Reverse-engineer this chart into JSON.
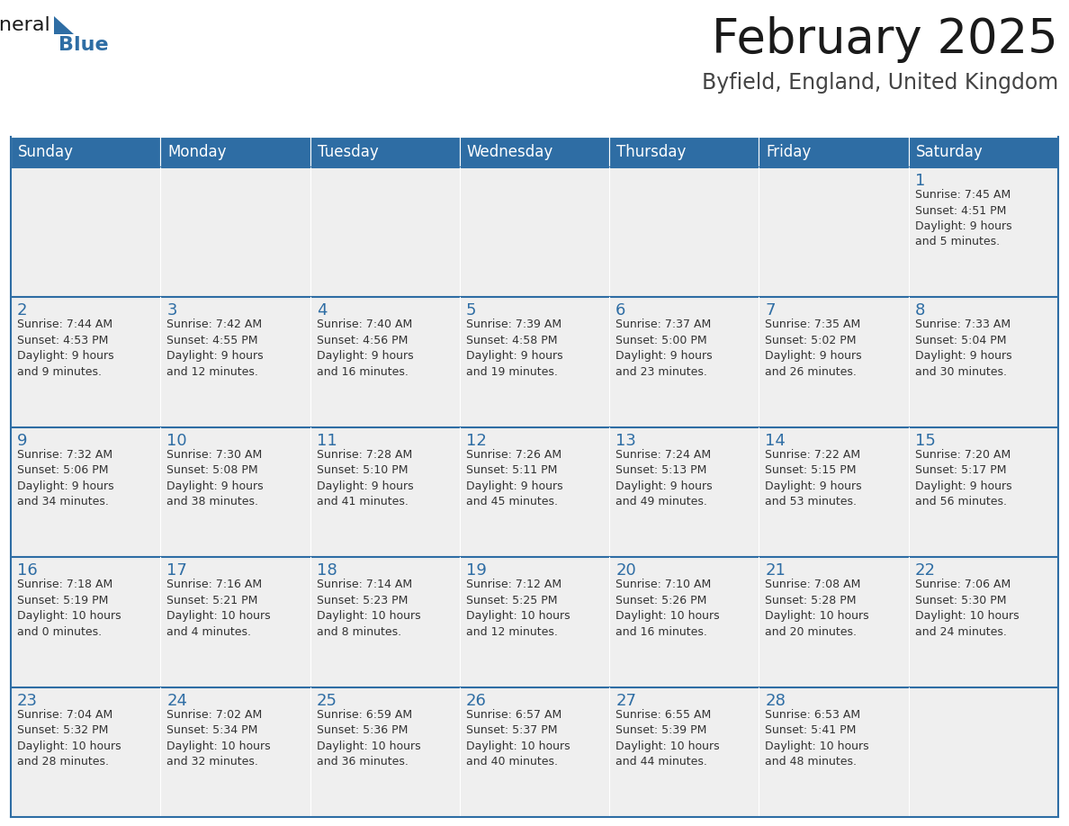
{
  "title": "February 2025",
  "subtitle": "Byfield, England, United Kingdom",
  "days_of_week": [
    "Sunday",
    "Monday",
    "Tuesday",
    "Wednesday",
    "Thursday",
    "Friday",
    "Saturday"
  ],
  "header_bg": "#2E6DA4",
  "header_text": "#FFFFFF",
  "cell_bg": "#EFEFEF",
  "cell_bg_white": "#FFFFFF",
  "day_num_color": "#2E6DA4",
  "text_color": "#333333",
  "border_color": "#2E6DA4",
  "calendar_data": [
    [
      {
        "day": null,
        "info": null
      },
      {
        "day": null,
        "info": null
      },
      {
        "day": null,
        "info": null
      },
      {
        "day": null,
        "info": null
      },
      {
        "day": null,
        "info": null
      },
      {
        "day": null,
        "info": null
      },
      {
        "day": 1,
        "info": "Sunrise: 7:45 AM\nSunset: 4:51 PM\nDaylight: 9 hours\nand 5 minutes."
      }
    ],
    [
      {
        "day": 2,
        "info": "Sunrise: 7:44 AM\nSunset: 4:53 PM\nDaylight: 9 hours\nand 9 minutes."
      },
      {
        "day": 3,
        "info": "Sunrise: 7:42 AM\nSunset: 4:55 PM\nDaylight: 9 hours\nand 12 minutes."
      },
      {
        "day": 4,
        "info": "Sunrise: 7:40 AM\nSunset: 4:56 PM\nDaylight: 9 hours\nand 16 minutes."
      },
      {
        "day": 5,
        "info": "Sunrise: 7:39 AM\nSunset: 4:58 PM\nDaylight: 9 hours\nand 19 minutes."
      },
      {
        "day": 6,
        "info": "Sunrise: 7:37 AM\nSunset: 5:00 PM\nDaylight: 9 hours\nand 23 minutes."
      },
      {
        "day": 7,
        "info": "Sunrise: 7:35 AM\nSunset: 5:02 PM\nDaylight: 9 hours\nand 26 minutes."
      },
      {
        "day": 8,
        "info": "Sunrise: 7:33 AM\nSunset: 5:04 PM\nDaylight: 9 hours\nand 30 minutes."
      }
    ],
    [
      {
        "day": 9,
        "info": "Sunrise: 7:32 AM\nSunset: 5:06 PM\nDaylight: 9 hours\nand 34 minutes."
      },
      {
        "day": 10,
        "info": "Sunrise: 7:30 AM\nSunset: 5:08 PM\nDaylight: 9 hours\nand 38 minutes."
      },
      {
        "day": 11,
        "info": "Sunrise: 7:28 AM\nSunset: 5:10 PM\nDaylight: 9 hours\nand 41 minutes."
      },
      {
        "day": 12,
        "info": "Sunrise: 7:26 AM\nSunset: 5:11 PM\nDaylight: 9 hours\nand 45 minutes."
      },
      {
        "day": 13,
        "info": "Sunrise: 7:24 AM\nSunset: 5:13 PM\nDaylight: 9 hours\nand 49 minutes."
      },
      {
        "day": 14,
        "info": "Sunrise: 7:22 AM\nSunset: 5:15 PM\nDaylight: 9 hours\nand 53 minutes."
      },
      {
        "day": 15,
        "info": "Sunrise: 7:20 AM\nSunset: 5:17 PM\nDaylight: 9 hours\nand 56 minutes."
      }
    ],
    [
      {
        "day": 16,
        "info": "Sunrise: 7:18 AM\nSunset: 5:19 PM\nDaylight: 10 hours\nand 0 minutes."
      },
      {
        "day": 17,
        "info": "Sunrise: 7:16 AM\nSunset: 5:21 PM\nDaylight: 10 hours\nand 4 minutes."
      },
      {
        "day": 18,
        "info": "Sunrise: 7:14 AM\nSunset: 5:23 PM\nDaylight: 10 hours\nand 8 minutes."
      },
      {
        "day": 19,
        "info": "Sunrise: 7:12 AM\nSunset: 5:25 PM\nDaylight: 10 hours\nand 12 minutes."
      },
      {
        "day": 20,
        "info": "Sunrise: 7:10 AM\nSunset: 5:26 PM\nDaylight: 10 hours\nand 16 minutes."
      },
      {
        "day": 21,
        "info": "Sunrise: 7:08 AM\nSunset: 5:28 PM\nDaylight: 10 hours\nand 20 minutes."
      },
      {
        "day": 22,
        "info": "Sunrise: 7:06 AM\nSunset: 5:30 PM\nDaylight: 10 hours\nand 24 minutes."
      }
    ],
    [
      {
        "day": 23,
        "info": "Sunrise: 7:04 AM\nSunset: 5:32 PM\nDaylight: 10 hours\nand 28 minutes."
      },
      {
        "day": 24,
        "info": "Sunrise: 7:02 AM\nSunset: 5:34 PM\nDaylight: 10 hours\nand 32 minutes."
      },
      {
        "day": 25,
        "info": "Sunrise: 6:59 AM\nSunset: 5:36 PM\nDaylight: 10 hours\nand 36 minutes."
      },
      {
        "day": 26,
        "info": "Sunrise: 6:57 AM\nSunset: 5:37 PM\nDaylight: 10 hours\nand 40 minutes."
      },
      {
        "day": 27,
        "info": "Sunrise: 6:55 AM\nSunset: 5:39 PM\nDaylight: 10 hours\nand 44 minutes."
      },
      {
        "day": 28,
        "info": "Sunrise: 6:53 AM\nSunset: 5:41 PM\nDaylight: 10 hours\nand 48 minutes."
      },
      {
        "day": null,
        "info": null
      }
    ]
  ],
  "logo_general_color": "#1a1a1a",
  "logo_blue_color": "#2E6DA4",
  "fig_width": 11.88,
  "fig_height": 9.18,
  "title_fontsize": 38,
  "subtitle_fontsize": 17,
  "header_fontsize": 12,
  "daynum_fontsize": 13,
  "info_fontsize": 9
}
